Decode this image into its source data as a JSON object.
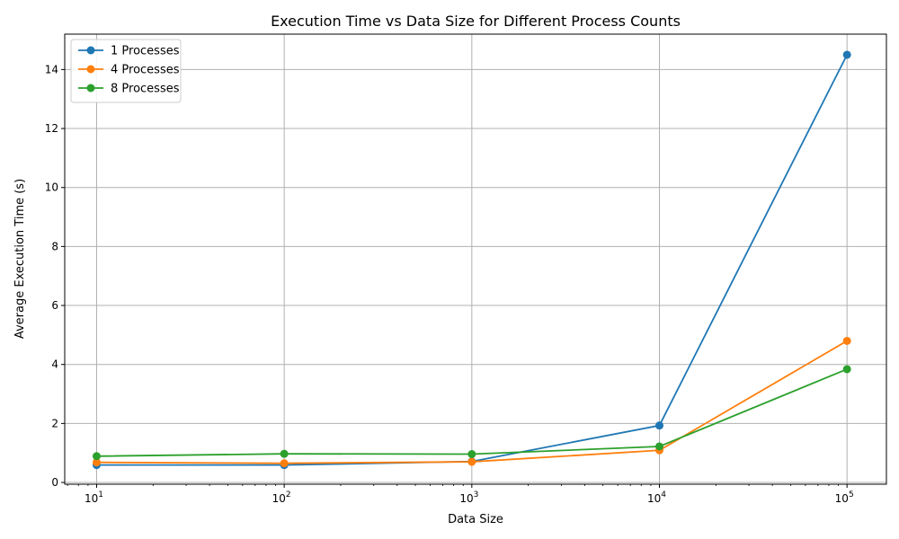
{
  "chart_data": {
    "type": "line",
    "title": "Execution Time vs Data Size for Different Process Counts",
    "xlabel": "Data Size",
    "ylabel": "Average Execution Time (s)",
    "x_scale": "log",
    "x": [
      10,
      100,
      1000,
      10000,
      100000
    ],
    "x_tick_labels": [
      {
        "base": "10",
        "exp": "1"
      },
      {
        "base": "10",
        "exp": "2"
      },
      {
        "base": "10",
        "exp": "3"
      },
      {
        "base": "10",
        "exp": "4"
      },
      {
        "base": "10",
        "exp": "5"
      }
    ],
    "y_ticks": [
      0,
      2,
      4,
      6,
      8,
      10,
      12,
      14
    ],
    "y_tick_labels": [
      "0",
      "2",
      "4",
      "6",
      "8",
      "10",
      "12",
      "14"
    ],
    "ylim": [
      -0.06,
      15.2
    ],
    "grid": true,
    "legend_position": "top-left",
    "series": [
      {
        "name": "1 Processes",
        "color": "#1f77b4",
        "values": [
          0.59,
          0.59,
          0.71,
          1.93,
          14.5
        ]
      },
      {
        "name": "4 Processes",
        "color": "#ff7f0e",
        "values": [
          0.68,
          0.65,
          0.7,
          1.09,
          4.8
        ]
      },
      {
        "name": "8 Processes",
        "color": "#2ca02c",
        "values": [
          0.89,
          0.97,
          0.96,
          1.22,
          3.84
        ]
      }
    ]
  }
}
